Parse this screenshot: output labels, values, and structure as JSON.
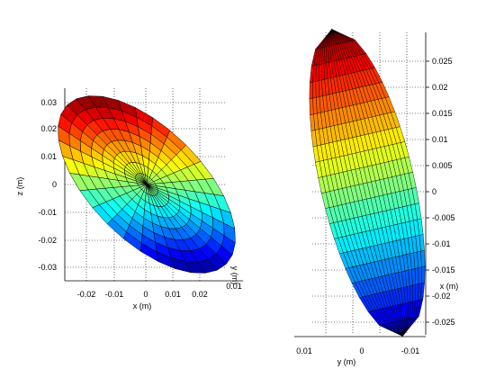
{
  "figure": {
    "background": "#ffffff",
    "colormap": "jet"
  },
  "chart_data": [
    {
      "type": "surface",
      "shape": "ellipsoid",
      "view": "looking along the y axis (x horizontal, z vertical)",
      "xlabel": "x (m)",
      "ylabel": "y (m)",
      "zlabel": "z (m)",
      "xticks": [
        "-0.02",
        "-0.01",
        "0",
        "0.01",
        "0.02"
      ],
      "zticks": [
        "0.03",
        "0.02",
        "0.01",
        "0",
        "-0.01",
        "-0.02",
        "-0.03"
      ],
      "yticks_visible": [
        "0.01"
      ],
      "xlim": [
        -0.028,
        0.028
      ],
      "zlim": [
        -0.035,
        0.035
      ],
      "grid": true,
      "color_by": "z",
      "approx_extent": {
        "x": [
          -0.028,
          0.027
        ],
        "z": [
          -0.033,
          0.035
        ]
      }
    },
    {
      "type": "surface",
      "shape": "ellipsoid",
      "view": "looking along the x axis (y horizontal, z vertical)",
      "xlabel": "x (m)",
      "ylabel": "y (m)",
      "yticks": [
        "0.01",
        "0",
        "-0.01"
      ],
      "zticks": [
        "0.025",
        "0.02",
        "0.015",
        "0.01",
        "0.005",
        "0",
        "-0.005",
        "-0.01",
        "-0.015",
        "-0.02",
        "-0.025"
      ],
      "ylim": [
        0.012,
        -0.012
      ],
      "zlim": [
        -0.03,
        0.03
      ],
      "grid": true,
      "color_by": "z",
      "approx_extent": {
        "y": [
          0.01,
          -0.012
        ],
        "z": [
          -0.029,
          0.03
        ]
      }
    }
  ]
}
